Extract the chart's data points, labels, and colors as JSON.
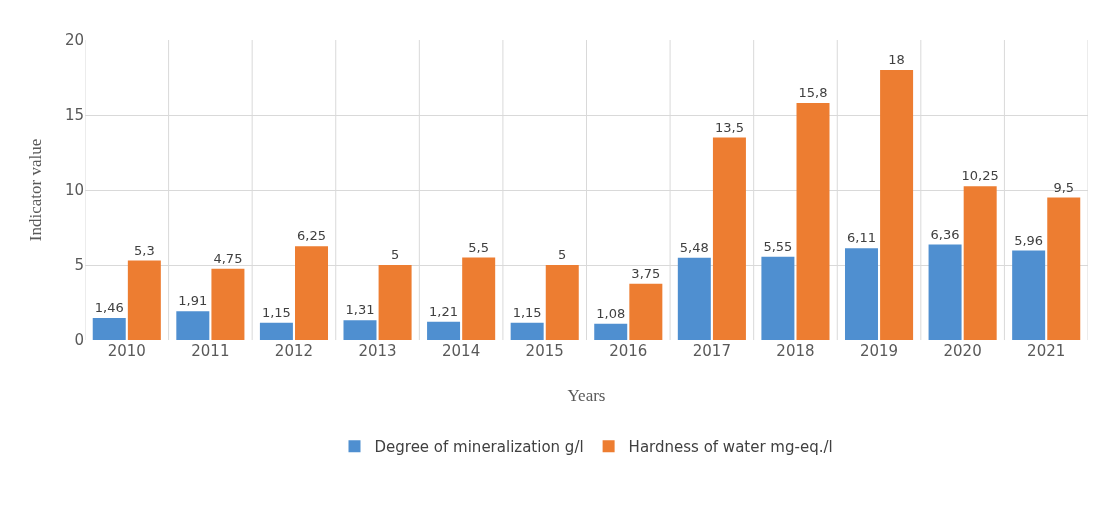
{
  "chart_data": {
    "type": "bar",
    "xlabel": "Years",
    "ylabel": "Indicator value",
    "categories": [
      "2010",
      "2011",
      "2012",
      "2013",
      "2014",
      "2015",
      "2016",
      "2017",
      "2018",
      "2019",
      "2020",
      "2021"
    ],
    "series": [
      {
        "name": "Degree of mineralization g/l",
        "color": "#4f8fd0",
        "values": [
          1.46,
          1.91,
          1.15,
          1.31,
          1.21,
          1.15,
          1.08,
          5.48,
          5.55,
          6.11,
          6.36,
          5.96
        ],
        "value_labels": [
          "1,46",
          "1,91",
          "1,15",
          "1,31",
          "1,21",
          "1,15",
          "1,08",
          "5,48",
          "5,55",
          "6,11",
          "6,36",
          "5,96"
        ]
      },
      {
        "name": "Hardness of water mg-eq./l",
        "color": "#ed7d31",
        "values": [
          5.3,
          4.75,
          6.25,
          5,
          5.5,
          5,
          3.75,
          13.5,
          15.8,
          18,
          10.25,
          9.5
        ],
        "value_labels": [
          "5,3",
          "4,75",
          "6,25",
          "5",
          "5,5",
          "5",
          "3,75",
          "13,5",
          "15,8",
          "18",
          "10,25",
          "9,5"
        ]
      }
    ],
    "ylim": [
      0,
      20
    ],
    "yticks": [
      0,
      5,
      10,
      15,
      20
    ],
    "grid": true,
    "legend": "bottom"
  }
}
